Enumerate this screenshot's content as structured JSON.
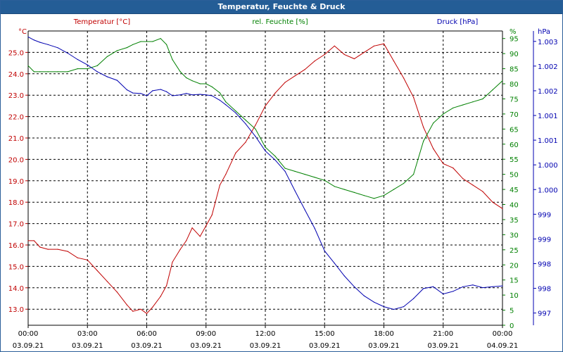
{
  "colors": {
    "temperature": "#c00000",
    "humidity": "#008000",
    "pressure": "#0000b0",
    "title_bar": "#245d96",
    "grid": "#000000"
  },
  "chart_data": {
    "type": "line",
    "title": "Temperatur, Feuchte & Druck",
    "grid": true,
    "x_ticks": [
      {
        "time": "00:00",
        "date": "03.09.21"
      },
      {
        "time": "03:00",
        "date": "03.09.21"
      },
      {
        "time": "06:00",
        "date": "03.09.21"
      },
      {
        "time": "09:00",
        "date": "03.09.21"
      },
      {
        "time": "12:00",
        "date": "03.09.21"
      },
      {
        "time": "15:00",
        "date": "03.09.21"
      },
      {
        "time": "18:00",
        "date": "03.09.21"
      },
      {
        "time": "21:00",
        "date": "03.09.21"
      },
      {
        "time": "00:00",
        "date": "04.09.21"
      }
    ],
    "xlim_hours": [
      0,
      24
    ],
    "axes": {
      "temperature": {
        "label": "Temperatur [°C]",
        "unit": "°C",
        "ylim": [
          12.25,
          26.0
        ],
        "ticks": [
          "13.0",
          "14.0",
          "15.0",
          "16.0",
          "17.0",
          "18.0",
          "19.0",
          "20.0",
          "21.0",
          "22.0",
          "23.0",
          "24.0",
          "25.0"
        ]
      },
      "humidity": {
        "label": "rel. Feuchte [%]",
        "unit": "%",
        "ylim": [
          0,
          97.5
        ],
        "ticks": [
          "0",
          "5",
          "10",
          "15",
          "20",
          "25",
          "30",
          "35",
          "40",
          "45",
          "50",
          "55",
          "60",
          "65",
          "70",
          "75",
          "80",
          "85",
          "90",
          "95"
        ]
      },
      "pressure": {
        "label": "Druck [hPa]",
        "unit": "hPa",
        "ylim": [
          996.73,
          1003.23
        ],
        "ticks": [
          "997",
          "998",
          "998",
          "999",
          "999",
          "1.000",
          "1.000",
          "1.001",
          "1.001",
          "1.002",
          "1.002",
          "1.003"
        ]
      }
    },
    "series": [
      {
        "name": "Temperatur",
        "axis": "temperature",
        "x": [
          0,
          0.3,
          0.6,
          1,
          1.5,
          2,
          2.5,
          3,
          3.5,
          4,
          4.5,
          5,
          5.3,
          5.7,
          6,
          6.3,
          6.7,
          7,
          7.3,
          7.7,
          8,
          8.3,
          8.7,
          9,
          9.3,
          9.7,
          10,
          10.5,
          11,
          11.5,
          12,
          12.5,
          13,
          13.5,
          14,
          14.5,
          15,
          15.5,
          16,
          16.5,
          17,
          17.5,
          18,
          18.5,
          19,
          19.5,
          20,
          20.5,
          21,
          21.5,
          22,
          22.5,
          23,
          23.5,
          24
        ],
        "values": [
          16.2,
          16.2,
          15.9,
          15.8,
          15.8,
          15.7,
          15.4,
          15.3,
          14.8,
          14.3,
          13.8,
          13.2,
          12.9,
          13.0,
          12.8,
          13.1,
          13.6,
          14.1,
          15.2,
          15.8,
          16.2,
          16.8,
          16.4,
          16.9,
          17.4,
          18.8,
          19.3,
          20.3,
          20.8,
          21.6,
          22.5,
          23.1,
          23.6,
          23.9,
          24.2,
          24.6,
          24.9,
          25.3,
          24.9,
          24.7,
          25.0,
          25.3,
          25.4,
          24.6,
          23.8,
          22.9,
          21.5,
          20.5,
          19.8,
          19.6,
          19.1,
          18.8,
          18.5,
          18.0,
          17.7
        ]
      },
      {
        "name": "rel. Feuchte",
        "axis": "humidity",
        "x": [
          0,
          0.3,
          0.6,
          1,
          1.5,
          2,
          2.5,
          3,
          3.5,
          4,
          4.5,
          5,
          5.3,
          5.7,
          6,
          6.3,
          6.7,
          7,
          7.3,
          7.7,
          8,
          8.3,
          8.7,
          9,
          9.3,
          9.7,
          10,
          10.5,
          11,
          11.5,
          12,
          12.5,
          13,
          13.5,
          14,
          14.5,
          15,
          15.5,
          16,
          16.5,
          17,
          17.5,
          18,
          18.5,
          19,
          19.5,
          20,
          20.5,
          21,
          21.5,
          22,
          22.5,
          23,
          23.5,
          24
        ],
        "values": [
          86,
          84,
          84,
          84,
          84,
          84,
          85,
          85,
          86,
          89,
          91,
          92,
          93,
          94,
          94,
          94,
          95,
          93,
          88,
          84,
          82,
          81,
          80,
          80,
          79,
          77,
          74,
          71,
          68,
          65,
          59,
          56,
          52,
          51,
          50,
          49,
          48,
          46,
          45,
          44,
          43,
          42,
          43,
          45,
          47,
          50,
          61,
          67,
          70,
          72,
          73,
          74,
          75,
          78,
          81
        ]
      },
      {
        "name": "Druck",
        "axis": "pressure",
        "x": [
          0,
          0.3,
          0.6,
          1,
          1.5,
          2,
          2.5,
          3,
          3.5,
          4,
          4.5,
          5,
          5.3,
          5.7,
          6,
          6.3,
          6.7,
          7,
          7.3,
          7.7,
          8,
          8.3,
          8.7,
          9,
          9.3,
          9.7,
          10,
          10.5,
          11,
          11.5,
          12,
          12.5,
          13,
          13.5,
          14,
          14.5,
          15,
          15.5,
          16,
          16.5,
          17,
          17.5,
          18,
          18.5,
          19,
          19.5,
          20,
          20.5,
          21,
          21.5,
          22,
          22.5,
          23,
          23.5,
          24
        ],
        "values": [
          1003.1,
          1003.03,
          1002.98,
          1002.93,
          1002.86,
          1002.74,
          1002.6,
          1002.48,
          1002.33,
          1002.22,
          1002.14,
          1001.93,
          1001.86,
          1001.85,
          1001.8,
          1001.91,
          1001.94,
          1001.89,
          1001.8,
          1001.82,
          1001.85,
          1001.82,
          1001.83,
          1001.82,
          1001.8,
          1001.7,
          1001.6,
          1001.42,
          1001.18,
          1000.9,
          1000.58,
          1000.38,
          1000.13,
          999.7,
          999.28,
          998.87,
          998.37,
          998.1,
          997.82,
          997.58,
          997.38,
          997.24,
          997.14,
          997.08,
          997.14,
          997.32,
          997.54,
          997.58,
          997.42,
          997.48,
          997.58,
          997.62,
          997.56,
          997.58,
          997.6
        ]
      }
    ]
  }
}
